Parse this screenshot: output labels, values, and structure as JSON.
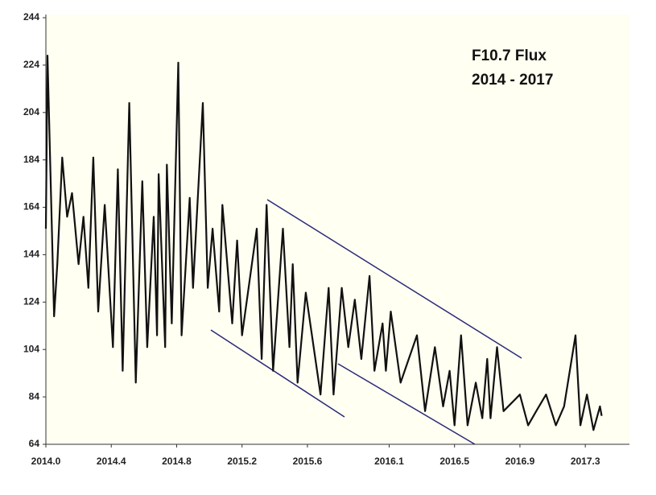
{
  "chart_data": {
    "type": "line",
    "title": [
      "F10.7 Flux",
      "2014 - 2017"
    ],
    "x": [
      2014.0,
      2014.01,
      2014.05,
      2014.07,
      2014.1,
      2014.13,
      2014.16,
      2014.2,
      2014.23,
      2014.26,
      2014.29,
      2014.32,
      2014.36,
      2014.41,
      2014.44,
      2014.47,
      2014.51,
      2014.55,
      2014.59,
      2014.62,
      2014.66,
      2014.68,
      2014.69,
      2014.73,
      2014.74,
      2014.77,
      2014.81,
      2014.83,
      2014.88,
      2014.9,
      2014.96,
      2014.99,
      2015.02,
      2015.06,
      2015.08,
      2015.14,
      2015.17,
      2015.2,
      2015.29,
      2015.32,
      2015.35,
      2015.39,
      2015.45,
      2015.49,
      2015.51,
      2015.54,
      2015.59,
      2015.68,
      2015.73,
      2015.76,
      2015.81,
      2015.85,
      2015.89,
      2015.93,
      2015.98,
      2016.01,
      2016.06,
      2016.08,
      2016.11,
      2016.17,
      2016.27,
      2016.32,
      2016.38,
      2016.43,
      2016.47,
      2016.5,
      2016.54,
      2016.58,
      2016.63,
      2016.67,
      2016.7,
      2016.72,
      2016.76,
      2016.8,
      2016.9,
      2016.95,
      2017.0,
      2017.06,
      2017.12,
      2017.17,
      2017.24,
      2017.27,
      2017.31,
      2017.35,
      2017.39,
      2017.4
    ],
    "values": [
      155,
      228,
      118,
      140,
      185,
      160,
      170,
      140,
      160,
      130,
      185,
      120,
      165,
      105,
      180,
      95,
      208,
      90,
      175,
      105,
      160,
      110,
      178,
      105,
      182,
      115,
      225,
      110,
      168,
      130,
      208,
      130,
      155,
      120,
      165,
      115,
      150,
      110,
      155,
      100,
      165,
      95,
      155,
      105,
      140,
      90,
      128,
      85,
      130,
      85,
      130,
      105,
      125,
      100,
      135,
      95,
      115,
      95,
      120,
      90,
      110,
      78,
      105,
      80,
      95,
      72,
      110,
      72,
      90,
      75,
      100,
      75,
      105,
      78,
      85,
      72,
      78,
      85,
      72,
      80,
      110,
      72,
      85,
      70,
      80,
      76
    ],
    "color": "#111111",
    "xlim": [
      2014.0,
      2017.57
    ],
    "xticks": [
      {
        "value": 2014.0,
        "label": "2014.0"
      },
      2014.4,
      2014.8,
      2015.2,
      2015.6,
      2016.1,
      2016.5,
      2016.9,
      2017.3
    ],
    "ylim": [
      64,
      244
    ],
    "yticks": [
      64,
      84,
      104,
      124,
      144,
      164,
      184,
      204,
      224,
      244
    ]
  }
}
